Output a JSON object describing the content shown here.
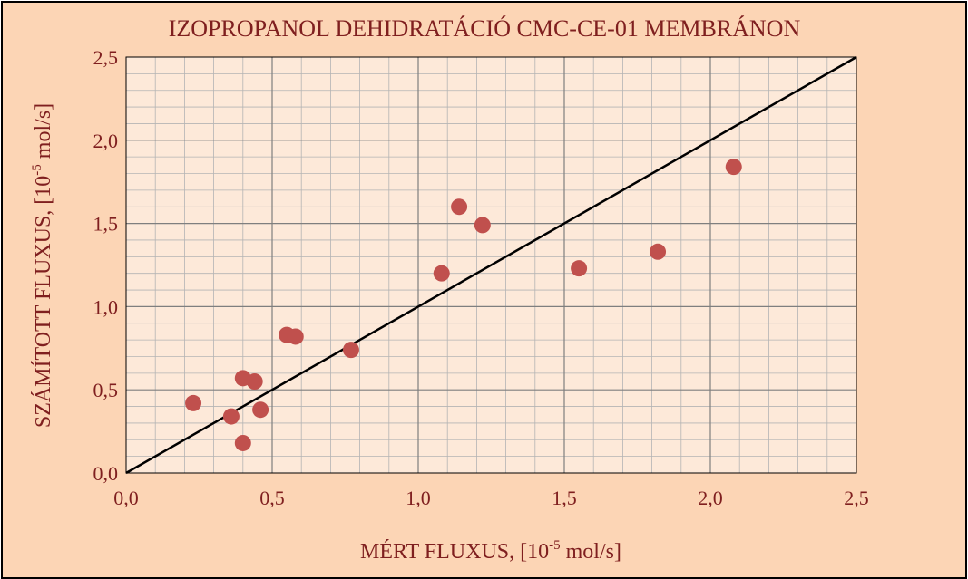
{
  "chart_data": {
    "type": "scatter",
    "title": "IZOPROPANOL DEHIDRATÁCIÓ CMC-CE-01 MEMBRÁNON",
    "xlabel": {
      "main": "MÉRT FLUXUS,  [10",
      "exp": "-5",
      "unit": " mol/s]"
    },
    "ylabel": {
      "main": "SZÁMÍTOTT FLUXUS,  [10",
      "exp": "-5",
      "unit": " mol/s]"
    },
    "xlim": [
      0,
      2.5
    ],
    "ylim": [
      0,
      2.5
    ],
    "x_ticks": [
      "0,0",
      "0,5",
      "1,0",
      "1,5",
      "2,0",
      "2,5"
    ],
    "y_ticks": [
      "0,0",
      "0,5",
      "1,0",
      "1,5",
      "2,0",
      "2,5"
    ],
    "tick_values": [
      0,
      0.5,
      1.0,
      1.5,
      2.0,
      2.5
    ],
    "minor_step": 0.1,
    "grid": true,
    "reference_line": {
      "x": [
        0,
        2.5
      ],
      "y": [
        0,
        2.5
      ]
    },
    "series": [
      {
        "points": [
          {
            "x": 0.23,
            "y": 0.42
          },
          {
            "x": 0.36,
            "y": 0.34
          },
          {
            "x": 0.4,
            "y": 0.57
          },
          {
            "x": 0.4,
            "y": 0.18
          },
          {
            "x": 0.44,
            "y": 0.55
          },
          {
            "x": 0.46,
            "y": 0.38
          },
          {
            "x": 0.55,
            "y": 0.83
          },
          {
            "x": 0.58,
            "y": 0.82
          },
          {
            "x": 0.77,
            "y": 0.74
          },
          {
            "x": 1.08,
            "y": 1.2
          },
          {
            "x": 1.14,
            "y": 1.6
          },
          {
            "x": 1.22,
            "y": 1.49
          },
          {
            "x": 1.55,
            "y": 1.23
          },
          {
            "x": 1.82,
            "y": 1.33
          },
          {
            "x": 2.08,
            "y": 1.84
          }
        ]
      }
    ],
    "colors": {
      "frame_bg": "#fcd5b5",
      "plot_bg": "#fde9d9",
      "text": "#7f1f1f",
      "marker": "#c0504d",
      "line": "#000000",
      "minor_grid": "#b4b4b4",
      "major_grid": "#7f7f7f"
    }
  }
}
